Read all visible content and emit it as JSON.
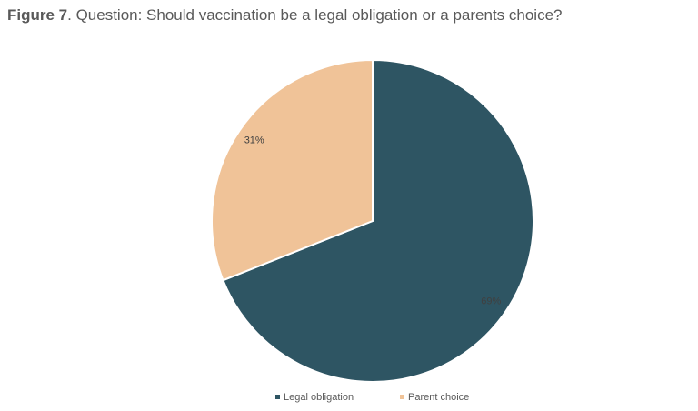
{
  "chart_data": {
    "type": "pie",
    "figure_label": "Figure 7",
    "title": ". Question: Should vaccination be a legal obligation or a parents choice?",
    "categories": [
      "Legal obligation",
      "Parent choice"
    ],
    "values": [
      69,
      31
    ],
    "value_labels": [
      "69%",
      "31%"
    ],
    "colors": [
      "#2e5563",
      "#f0c398"
    ]
  }
}
